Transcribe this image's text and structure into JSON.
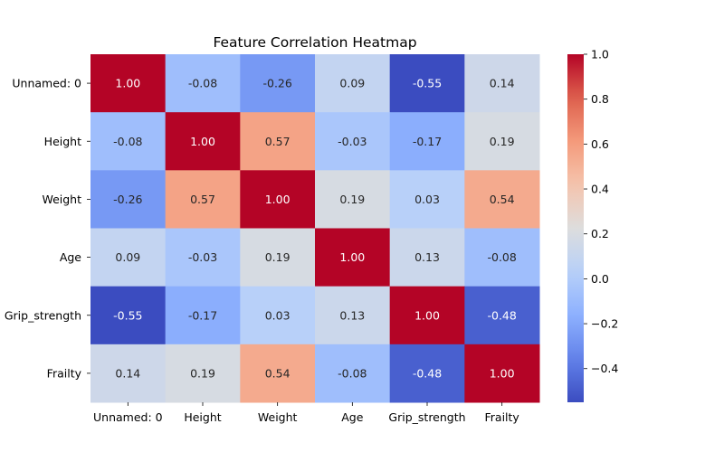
{
  "chart_data": {
    "type": "heatmap",
    "title": "Feature Correlation Heatmap",
    "xlabel": "",
    "ylabel": "",
    "x_categories": [
      "Unnamed: 0",
      "Height",
      "Weight",
      "Age",
      "Grip_strength",
      "Frailty"
    ],
    "y_categories": [
      "Unnamed: 0",
      "Height",
      "Weight",
      "Age",
      "Grip_strength",
      "Frailty"
    ],
    "values": [
      [
        1.0,
        -0.08,
        -0.26,
        0.09,
        -0.55,
        0.14
      ],
      [
        -0.08,
        1.0,
        0.57,
        -0.03,
        -0.17,
        0.19
      ],
      [
        -0.26,
        0.57,
        1.0,
        0.19,
        0.03,
        0.54
      ],
      [
        0.09,
        -0.03,
        0.19,
        1.0,
        0.13,
        -0.08
      ],
      [
        -0.55,
        -0.17,
        0.03,
        0.13,
        1.0,
        -0.48
      ],
      [
        0.14,
        0.19,
        0.54,
        -0.08,
        -0.48,
        1.0
      ]
    ],
    "value_format": "0.00",
    "colormap": "coolwarm",
    "colorbar": {
      "vmin": -0.55,
      "vmax": 1.0,
      "ticks": [
        -0.4,
        -0.2,
        0.0,
        0.2,
        0.4,
        0.6,
        0.8,
        1.0
      ],
      "tick_labels": [
        "−0.4",
        "−0.2",
        "0.0",
        "0.2",
        "0.4",
        "0.6",
        "0.8",
        "1.0"
      ],
      "placement": "right"
    },
    "grid": false
  }
}
